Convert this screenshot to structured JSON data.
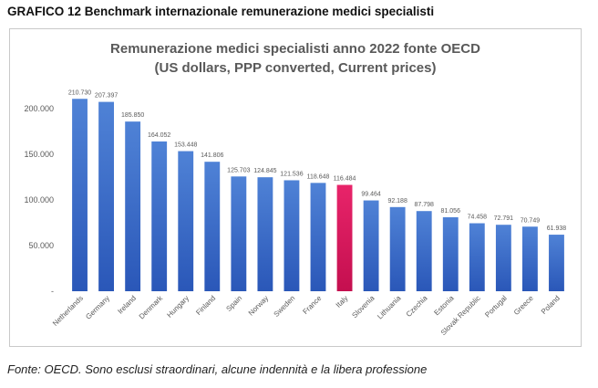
{
  "page": {
    "heading": "GRAFICO 12 Benchmark internazionale remunerazione medici specialisti",
    "source_note": "Fonte: OECD. Sono esclusi straordinari, alcune indennità e la libera professione"
  },
  "chart_data": {
    "type": "bar",
    "title_line1": "Remunerazione medici specialisti anno 2022 fonte OECD",
    "title_line2": "(US dollars, PPP converted, Current prices)",
    "categories": [
      "Netherlands",
      "Germany",
      "Ireland",
      "Denmark",
      "Hungary",
      "Finland",
      "Spain",
      "Norway",
      "Sweden",
      "France",
      "Italy",
      "Slovenia",
      "Lithuania",
      "Czechia",
      "Estonia",
      "Slovak Republic",
      "Portugal",
      "Greece",
      "Poland"
    ],
    "values": [
      210730,
      207397,
      185850,
      164052,
      153448,
      141806,
      125703,
      124845,
      121536,
      118648,
      116484,
      99464,
      92188,
      87798,
      81056,
      74458,
      72791,
      70749,
      61938
    ],
    "value_labels": [
      "210.730",
      "207.397",
      "185.850",
      "164.052",
      "153.448",
      "141.806",
      "125.703",
      "124.845",
      "121.536",
      "118.648",
      "116.484",
      "99.464",
      "92.188",
      "87.798",
      "81.056",
      "74.458",
      "72.791",
      "70.749",
      "61.938"
    ],
    "highlight_category": "Italy",
    "yticks": [
      0,
      50000,
      100000,
      150000,
      200000
    ],
    "ytick_labels": [
      "-",
      "50.000",
      "100.000",
      "150.000",
      "200.000"
    ],
    "ylim": [
      0,
      225000
    ],
    "xlabel": "",
    "ylabel": "",
    "grid": false,
    "legend": "none",
    "colors": {
      "bar_top": "#4f82d6",
      "bar_bottom": "#2a57b8",
      "highlight_top": "#e8246a",
      "highlight_bottom": "#c40f4f",
      "text": "#595959"
    }
  }
}
